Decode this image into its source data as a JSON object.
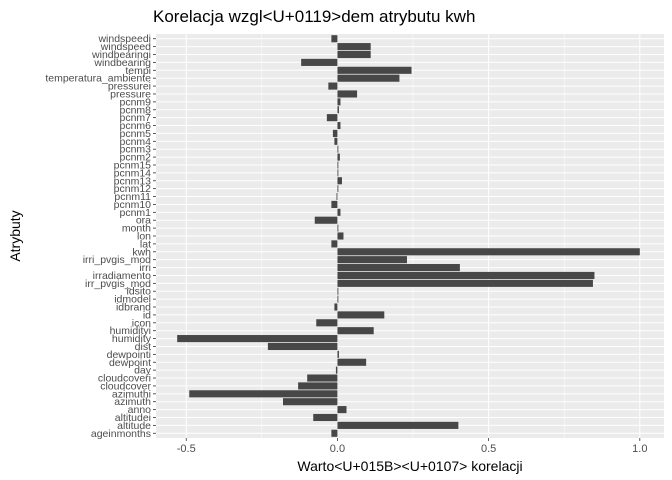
{
  "chart_data": {
    "type": "bar",
    "orientation": "horizontal",
    "title": "Korelacja wzgl<U+0119>dem atrybutu kwh",
    "xlabel": "Warto<U+015B><U+0107> korelacji",
    "ylabel": "Atrybuty",
    "xlim": [
      -0.6,
      1.08
    ],
    "x_ticks": [
      -0.5,
      0.0,
      0.5,
      1.0
    ],
    "x_tick_labels": [
      "-0.5",
      "0.0",
      "0.5",
      "1.0"
    ],
    "grid": true,
    "categories": [
      "ageinmonths",
      "altitude",
      "altitudei",
      "anno",
      "azimuth",
      "azimuthi",
      "cloudcover",
      "cloudcoveri",
      "day",
      "dewpoint",
      "dewpointi",
      "dist",
      "humidity",
      "humidityi",
      "icon",
      "id",
      "idbrand",
      "idmodel",
      "idsito",
      "irr_pvgis_mod",
      "irradiamento",
      "irri",
      "irri_pvgis_mod",
      "kwh",
      "lat",
      "lon",
      "month",
      "ora",
      "pcnm1",
      "pcnm10",
      "pcnm11",
      "pcnm12",
      "pcnm13",
      "pcnm14",
      "pcnm15",
      "pcnm2",
      "pcnm3",
      "pcnm4",
      "pcnm5",
      "pcnm6",
      "pcnm7",
      "pcnm8",
      "pcnm9",
      "pressure",
      "pressurei",
      "temperatura_ambiente",
      "tempi",
      "windbearing",
      "windbearingi",
      "windspeed",
      "windspeedi"
    ],
    "values": [
      -0.02,
      0.4,
      -0.08,
      0.03,
      -0.18,
      -0.49,
      -0.13,
      -0.1,
      -0.005,
      0.095,
      0.005,
      -0.23,
      -0.53,
      0.12,
      -0.07,
      0.155,
      -0.01,
      0.003,
      0.003,
      0.845,
      0.85,
      0.405,
      0.23,
      1.0,
      -0.02,
      0.02,
      0.003,
      -0.075,
      0.01,
      -0.02,
      -0.003,
      0.003,
      0.015,
      0.003,
      0.003,
      0.008,
      0.003,
      -0.01,
      -0.015,
      0.01,
      -0.035,
      0.005,
      0.01,
      0.065,
      -0.03,
      0.205,
      0.245,
      -0.12,
      0.11,
      0.11,
      -0.02
    ],
    "bar_color": "#474747",
    "panel_color": "#ebebeb",
    "grid_color": "#ffffff"
  }
}
